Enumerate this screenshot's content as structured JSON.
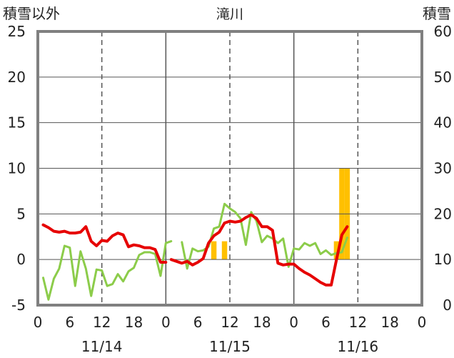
{
  "chart_data": {
    "type": "line",
    "title": "滝川",
    "ylabel_left": "積雪以外",
    "ylabel_right": "積雪",
    "ylim_left": [
      -5,
      25
    ],
    "ylim_right": [
      0,
      60
    ],
    "yticks_left": [
      "25",
      "20",
      "15",
      "10",
      "5",
      "0",
      "-5"
    ],
    "yticks_right": [
      "60",
      "50",
      "40",
      "30",
      "20",
      "10",
      "0"
    ],
    "xlim_hours": [
      0,
      72
    ],
    "xticks": [
      "0",
      "6",
      "12",
      "18",
      "0",
      "6",
      "12",
      "18",
      "0",
      "6",
      "12",
      "18",
      "0"
    ],
    "date_labels": [
      {
        "label": "11/14",
        "hour": 12
      },
      {
        "label": "11/15",
        "hour": 36
      },
      {
        "label": "11/16",
        "hour": 60
      }
    ],
    "colors": {
      "temperature": "#e60000",
      "wind": "#8ccc4a",
      "precipitation": "#ffc000",
      "snow": "#7030a0",
      "grid": "#555555",
      "frame": "#808080"
    },
    "series": [
      {
        "key": "temperature",
        "axis": "left",
        "segments": [
          [
            [
              1,
              3.8
            ],
            [
              2,
              3.5
            ],
            [
              3,
              3.1
            ],
            [
              4,
              3.0
            ],
            [
              5,
              3.1
            ],
            [
              6,
              2.9
            ],
            [
              7,
              2.9
            ],
            [
              8,
              3.0
            ],
            [
              9,
              3.6
            ],
            [
              10,
              2.0
            ],
            [
              11,
              1.5
            ],
            [
              12,
              2.1
            ],
            [
              13,
              2.0
            ],
            [
              14,
              2.6
            ],
            [
              15,
              2.9
            ],
            [
              16,
              2.7
            ],
            [
              17,
              1.4
            ],
            [
              18,
              1.6
            ],
            [
              19,
              1.5
            ],
            [
              20,
              1.3
            ],
            [
              21,
              1.3
            ],
            [
              22,
              1.1
            ],
            [
              23,
              -0.3
            ],
            [
              24,
              -0.3
            ]
          ],
          [
            [
              25,
              0.0
            ],
            [
              27,
              -0.4
            ],
            [
              28,
              -0.2
            ],
            [
              29,
              -0.6
            ],
            [
              30,
              -0.3
            ],
            [
              31,
              0.1
            ],
            [
              32,
              1.8
            ],
            [
              33,
              2.6
            ],
            [
              34,
              3.0
            ],
            [
              35,
              4.0
            ],
            [
              36,
              4.2
            ],
            [
              37,
              4.1
            ],
            [
              38,
              4.2
            ],
            [
              39,
              4.6
            ],
            [
              40,
              4.9
            ],
            [
              41,
              4.5
            ],
            [
              42,
              3.6
            ],
            [
              43,
              3.6
            ],
            [
              44,
              3.2
            ],
            [
              45,
              -0.4
            ],
            [
              46,
              -0.6
            ],
            [
              47,
              -0.5
            ],
            [
              48,
              -0.5
            ],
            [
              49,
              -1.0
            ],
            [
              50,
              -1.4
            ],
            [
              51,
              -1.7
            ],
            [
              52,
              -2.1
            ],
            [
              53,
              -2.5
            ],
            [
              54,
              -2.8
            ],
            [
              55,
              -2.8
            ],
            [
              56,
              0.0
            ],
            [
              57,
              2.7
            ],
            [
              58,
              3.6
            ]
          ]
        ]
      },
      {
        "key": "wind",
        "axis": "left",
        "segments": [
          [
            [
              1,
              -2.0
            ],
            [
              2,
              -4.4
            ],
            [
              3,
              -2.1
            ],
            [
              4,
              -1.0
            ],
            [
              5,
              1.5
            ],
            [
              6,
              1.3
            ],
            [
              7,
              -2.9
            ],
            [
              8,
              0.9
            ],
            [
              9,
              -1.0
            ],
            [
              10,
              -4.0
            ],
            [
              11,
              -1.1
            ],
            [
              12,
              -1.2
            ],
            [
              13,
              -2.9
            ],
            [
              14,
              -2.7
            ],
            [
              15,
              -1.6
            ],
            [
              16,
              -2.4
            ],
            [
              17,
              -1.3
            ],
            [
              18,
              -0.9
            ],
            [
              19,
              0.5
            ],
            [
              20,
              0.8
            ],
            [
              21,
              0.8
            ],
            [
              22,
              0.6
            ],
            [
              23,
              -1.8
            ],
            [
              24,
              1.8
            ],
            [
              25,
              2.0
            ]
          ],
          [
            [
              27,
              1.9
            ],
            [
              28,
              -1.0
            ],
            [
              29,
              1.2
            ],
            [
              30,
              0.9
            ],
            [
              31,
              1.0
            ],
            [
              32,
              1.4
            ],
            [
              33,
              3.4
            ],
            [
              34,
              3.6
            ],
            [
              35,
              6.1
            ],
            [
              36,
              5.6
            ],
            [
              37,
              5.2
            ],
            [
              38,
              4.5
            ],
            [
              39,
              1.6
            ],
            [
              40,
              5.2
            ],
            [
              41,
              4.2
            ],
            [
              42,
              1.9
            ],
            [
              43,
              2.6
            ],
            [
              44,
              2.3
            ],
            [
              45,
              1.8
            ],
            [
              46,
              2.3
            ],
            [
              47,
              -0.8
            ],
            [
              48,
              1.2
            ],
            [
              49,
              1.1
            ],
            [
              50,
              1.8
            ],
            [
              51,
              1.5
            ],
            [
              52,
              1.8
            ],
            [
              53,
              0.6
            ],
            [
              54,
              1.0
            ],
            [
              55,
              0.5
            ],
            [
              56,
              0.7
            ],
            [
              57,
              0.8
            ],
            [
              58,
              2.4
            ]
          ]
        ]
      },
      {
        "key": "snow",
        "axis": "right",
        "segments": [
          [
            [
              0,
              0
            ],
            [
              25,
              0
            ]
          ],
          [
            [
              27,
              0
            ],
            [
              58,
              0
            ]
          ]
        ]
      }
    ],
    "bars": {
      "key": "precipitation",
      "axis": "left",
      "hours": [
        33,
        35,
        56,
        57,
        58
      ],
      "values": [
        2.0,
        2.0,
        2.0,
        10.0,
        10.0
      ]
    }
  }
}
